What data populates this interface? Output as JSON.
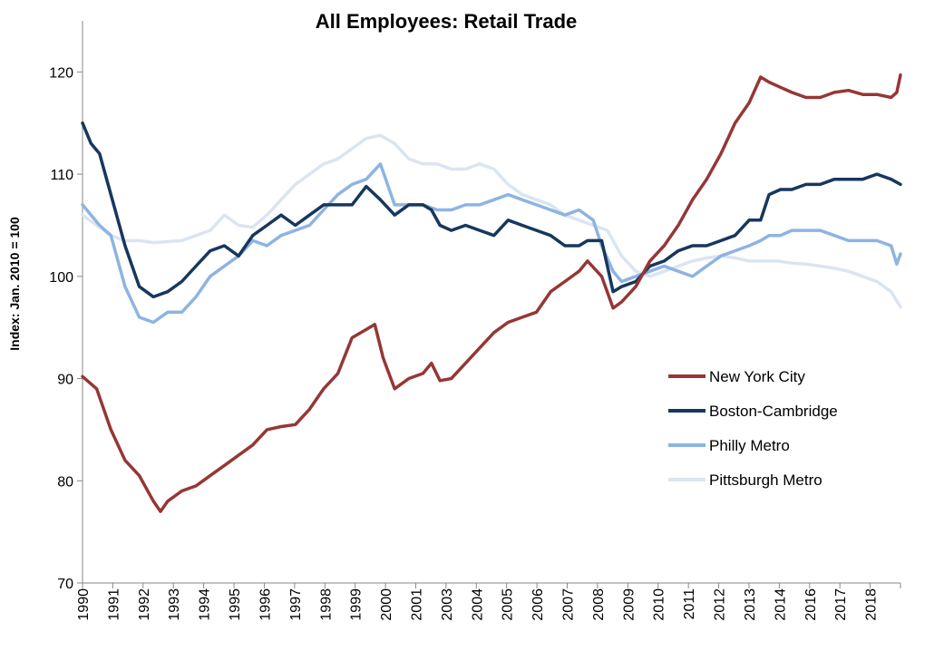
{
  "chart_data": {
    "type": "line",
    "title": "All Employees: Retail Trade",
    "xlabel": "",
    "ylabel": "Index: Jan. 2010 = 100",
    "ylim": [
      70,
      125
    ],
    "yticks": [
      70,
      80,
      90,
      100,
      110,
      120
    ],
    "xlim": [
      1990.0,
      2018.83
    ],
    "xtick_labels": [
      "1990",
      "1991",
      "1992",
      "1993",
      "1994",
      "1995",
      "1996",
      "1997",
      "1998",
      "1999",
      "2000",
      "2001",
      "2003",
      "2004",
      "2005",
      "2006",
      "2007",
      "2008",
      "2009",
      "2010",
      "2011",
      "2012",
      "2013",
      "2014",
      "2016",
      "2017",
      "2018"
    ],
    "grid": false,
    "legend_position": "right",
    "series": [
      {
        "name": "New York City",
        "color": "#953735",
        "x": [
          1990.0,
          1990.5,
          1991.0,
          1991.5,
          1992.0,
          1992.5,
          1992.75,
          1993.0,
          1993.5,
          1994.0,
          1994.5,
          1995.0,
          1995.5,
          1996.0,
          1996.5,
          1997.0,
          1997.5,
          1998.0,
          1998.5,
          1999.0,
          1999.5,
          2000.0,
          2000.3,
          2000.6,
          2001.0,
          2001.5,
          2002.0,
          2002.3,
          2002.6,
          2003.0,
          2003.5,
          2004.0,
          2004.5,
          2005.0,
          2005.5,
          2006.0,
          2006.5,
          2007.0,
          2007.5,
          2007.8,
          2008.3,
          2008.7,
          2009.0,
          2009.5,
          2010.0,
          2010.5,
          2011.0,
          2011.5,
          2012.0,
          2012.5,
          2013.0,
          2013.5,
          2013.9,
          2014.2,
          2014.6,
          2015.0,
          2015.5,
          2016.0,
          2016.5,
          2017.0,
          2017.5,
          2018.0,
          2018.5,
          2018.7,
          2018.83
        ],
        "values": [
          90.2,
          89.0,
          85.0,
          82.0,
          80.5,
          78.0,
          77.0,
          78.0,
          79.0,
          79.5,
          80.5,
          81.5,
          82.5,
          83.5,
          85.0,
          85.3,
          85.5,
          87.0,
          89.0,
          90.5,
          94.0,
          94.8,
          95.3,
          92.0,
          89.0,
          90.0,
          90.5,
          91.5,
          89.8,
          90.0,
          91.5,
          93.0,
          94.5,
          95.5,
          96.0,
          96.5,
          98.5,
          99.5,
          100.5,
          101.5,
          100.0,
          96.9,
          97.5,
          99.0,
          101.5,
          103.0,
          105.0,
          107.5,
          109.5,
          112.0,
          115.0,
          117.0,
          119.5,
          119.0,
          118.5,
          118.0,
          117.5,
          117.5,
          118.0,
          118.2,
          117.8,
          117.8,
          117.5,
          118.0,
          119.7
        ]
      },
      {
        "name": "Boston-Cambridge",
        "color": "#17375e",
        "x": [
          1990.0,
          1990.3,
          1990.6,
          1991.0,
          1991.5,
          1992.0,
          1992.5,
          1993.0,
          1993.5,
          1994.0,
          1994.5,
          1995.0,
          1995.5,
          1996.0,
          1996.5,
          1997.0,
          1997.5,
          1998.0,
          1998.5,
          1999.0,
          1999.5,
          2000.0,
          2000.5,
          2001.0,
          2001.5,
          2002.0,
          2002.3,
          2002.6,
          2003.0,
          2003.5,
          2004.0,
          2004.5,
          2005.0,
          2005.5,
          2006.0,
          2006.5,
          2007.0,
          2007.5,
          2007.8,
          2008.3,
          2008.7,
          2009.0,
          2009.5,
          2010.0,
          2010.5,
          2011.0,
          2011.5,
          2012.0,
          2012.5,
          2013.0,
          2013.5,
          2013.9,
          2014.2,
          2014.6,
          2015.0,
          2015.5,
          2016.0,
          2016.5,
          2017.0,
          2017.5,
          2018.0,
          2018.5,
          2018.83
        ],
        "values": [
          115.0,
          113.0,
          112.0,
          108.0,
          103.0,
          99.0,
          98.0,
          98.5,
          99.5,
          101.0,
          102.5,
          103.0,
          102.0,
          104.0,
          105.0,
          106.0,
          105.0,
          106.0,
          107.0,
          107.0,
          107.0,
          108.8,
          107.5,
          106.0,
          107.0,
          107.0,
          106.5,
          105.0,
          104.5,
          105.0,
          104.5,
          104.0,
          105.5,
          105.0,
          104.5,
          104.0,
          103.0,
          103.0,
          103.5,
          103.5,
          98.5,
          99.0,
          99.5,
          101.0,
          101.5,
          102.5,
          103.0,
          103.0,
          103.5,
          104.0,
          105.5,
          105.5,
          108.0,
          108.5,
          108.5,
          109.0,
          109.0,
          109.5,
          109.5,
          109.5,
          110.0,
          109.5,
          109.0
        ]
      },
      {
        "name": "Philly Metro",
        "color": "#8db4e2",
        "x": [
          1990.0,
          1990.3,
          1990.6,
          1991.0,
          1991.5,
          1992.0,
          1992.5,
          1993.0,
          1993.5,
          1994.0,
          1994.5,
          1995.0,
          1995.5,
          1996.0,
          1996.5,
          1997.0,
          1997.5,
          1998.0,
          1998.5,
          1999.0,
          1999.5,
          2000.0,
          2000.5,
          2001.0,
          2001.5,
          2002.0,
          2002.5,
          2003.0,
          2003.5,
          2004.0,
          2004.5,
          2005.0,
          2005.5,
          2006.0,
          2006.5,
          2007.0,
          2007.5,
          2008.0,
          2008.3,
          2008.7,
          2009.0,
          2009.5,
          2010.0,
          2010.5,
          2011.0,
          2011.5,
          2012.0,
          2012.5,
          2013.0,
          2013.5,
          2013.9,
          2014.2,
          2014.6,
          2015.0,
          2015.5,
          2016.0,
          2016.5,
          2017.0,
          2017.5,
          2018.0,
          2018.5,
          2018.7,
          2018.83
        ],
        "values": [
          107.0,
          106.0,
          105.0,
          104.0,
          99.0,
          96.0,
          95.5,
          96.5,
          96.5,
          98.0,
          100.0,
          101.0,
          102.0,
          103.5,
          103.0,
          104.0,
          104.5,
          105.0,
          106.5,
          108.0,
          109.0,
          109.5,
          111.0,
          107.0,
          107.0,
          107.0,
          106.5,
          106.5,
          107.0,
          107.0,
          107.5,
          108.0,
          107.5,
          107.0,
          106.5,
          106.0,
          106.5,
          105.5,
          103.0,
          100.5,
          99.5,
          100.0,
          100.5,
          101.0,
          100.5,
          100.0,
          101.0,
          102.0,
          102.5,
          103.0,
          103.5,
          104.0,
          104.0,
          104.5,
          104.5,
          104.5,
          104.0,
          103.5,
          103.5,
          103.5,
          103.0,
          101.2,
          102.2
        ]
      },
      {
        "name": "Pittsburgh Metro",
        "color": "#dbe5f1",
        "x": [
          1990.0,
          1990.5,
          1991.0,
          1991.5,
          1992.0,
          1992.5,
          1993.0,
          1993.5,
          1994.0,
          1994.5,
          1995.0,
          1995.5,
          1996.0,
          1996.5,
          1997.0,
          1997.5,
          1998.0,
          1998.5,
          1999.0,
          1999.5,
          2000.0,
          2000.5,
          2001.0,
          2001.5,
          2002.0,
          2002.5,
          2003.0,
          2003.5,
          2004.0,
          2004.5,
          2005.0,
          2005.5,
          2006.0,
          2006.5,
          2007.0,
          2007.5,
          2008.0,
          2008.5,
          2009.0,
          2009.5,
          2010.0,
          2010.5,
          2011.0,
          2011.5,
          2012.0,
          2012.5,
          2013.0,
          2013.5,
          2014.0,
          2014.5,
          2015.0,
          2015.5,
          2016.0,
          2016.5,
          2017.0,
          2017.5,
          2018.0,
          2018.5,
          2018.83
        ],
        "values": [
          106.0,
          105.0,
          104.0,
          103.5,
          103.5,
          103.3,
          103.4,
          103.5,
          104.0,
          104.5,
          106.0,
          105.0,
          104.8,
          106.0,
          107.5,
          109.0,
          110.0,
          111.0,
          111.5,
          112.5,
          113.5,
          113.8,
          113.0,
          111.5,
          111.0,
          111.0,
          110.5,
          110.5,
          111.0,
          110.5,
          109.0,
          108.0,
          107.5,
          107.0,
          106.0,
          105.5,
          105.0,
          104.5,
          102.0,
          100.5,
          100.0,
          100.5,
          101.0,
          101.5,
          101.8,
          102.0,
          101.8,
          101.5,
          101.5,
          101.5,
          101.3,
          101.2,
          101.0,
          100.8,
          100.5,
          100.0,
          99.5,
          98.5,
          97.0
        ]
      }
    ]
  }
}
